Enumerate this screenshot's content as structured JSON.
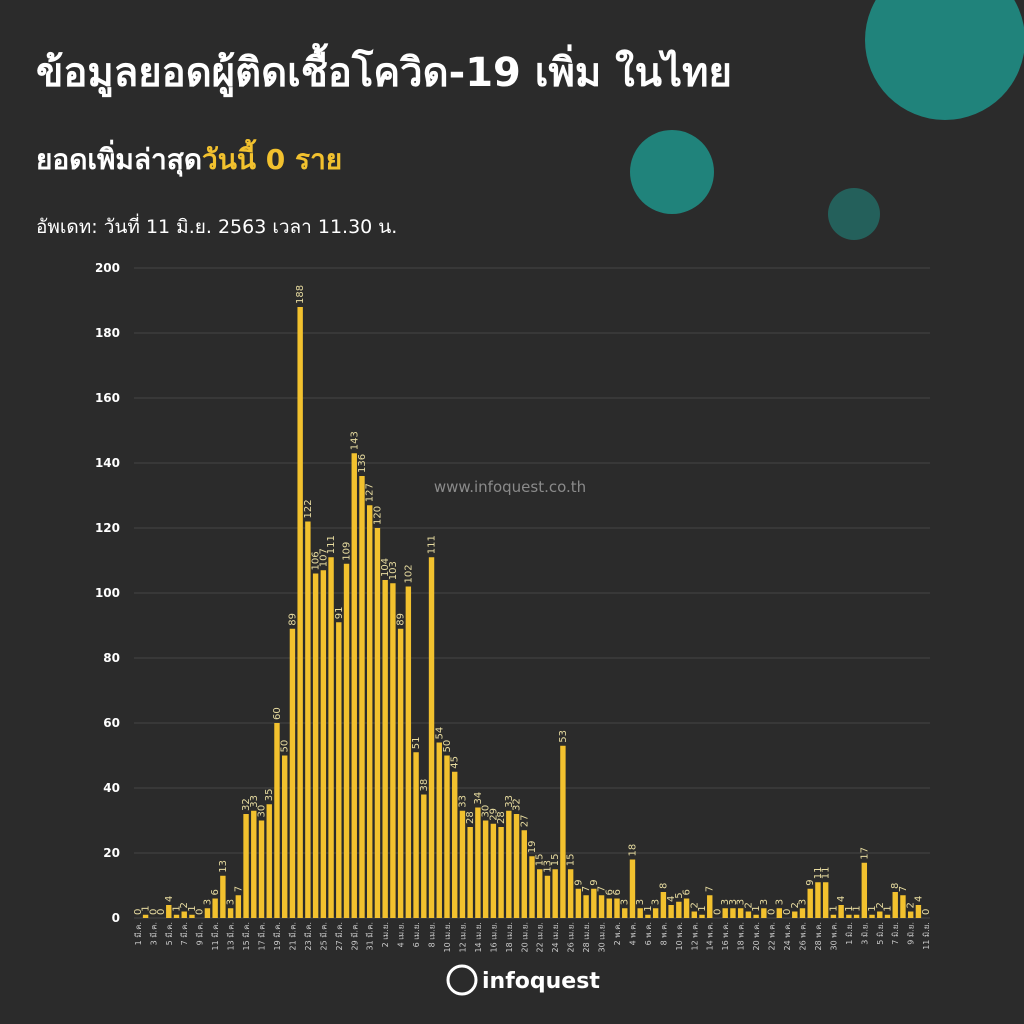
{
  "chart_data": {
    "type": "bar",
    "title": "ข้อมูลยอดผู้ติดเชื้อโควิด-19 เพิ่ม ในไทย",
    "subtitle": "ยอดเพิ่มล่าสุด",
    "subtitle_highlight": "วันนี้ 0 ราย",
    "update": "อัพเดท: วันที่ 11 มิ.ย. 2563 เวลา 11.30 น.",
    "watermark": "www.infoquest.co.th",
    "logo": "infoquest",
    "color": "#f2c12e",
    "grid": true,
    "ylim": [
      0,
      200
    ],
    "yticks": [
      0,
      20,
      40,
      60,
      80,
      100,
      120,
      140,
      160,
      180,
      200
    ],
    "categories": [
      "1 มี.ค.",
      null,
      "3 มี.ค.",
      null,
      "5 มี.ค.",
      null,
      "7 มี.ค.",
      null,
      "9 มี.ค.",
      null,
      "11 มี.ค.",
      null,
      "13 มี.ค.",
      null,
      "15 มี.ค.",
      null,
      "17 มี.ค.",
      null,
      "19 มี.ค.",
      null,
      "21 มี.ค.",
      null,
      "23 มี.ค.",
      null,
      "25 มี.ค.",
      null,
      "27 มี.ค.",
      null,
      "29 มี.ค.",
      null,
      "31 มี.ค.",
      null,
      "2 เม.ย.",
      null,
      "4 เม.ย.",
      null,
      "6 เม.ย.",
      null,
      "8 เม.ย.",
      null,
      "10 เม.ย.",
      null,
      "12 เม.ย.",
      null,
      "14 เม.ย.",
      null,
      "16 เม.ย.",
      null,
      "18 เม.ย.",
      null,
      "20 เม.ย.",
      null,
      "22 เม.ย.",
      null,
      "24 เม.ย.",
      null,
      "26 เม.ย.",
      null,
      "28 เม.ย.",
      null,
      "30 เม.ย.",
      null,
      "2 พ.ค.",
      null,
      "4 พ.ค.",
      null,
      "6 พ.ค.",
      null,
      "8 พ.ค.",
      null,
      "10 พ.ค.",
      null,
      "12 พ.ค.",
      null,
      "14 พ.ค.",
      null,
      "16 พ.ค.",
      null,
      "18 พ.ค.",
      null,
      "20 พ.ค.",
      null,
      "22 พ.ค.",
      null,
      "24 พ.ค.",
      null,
      "26 พ.ค.",
      null,
      "28 พ.ค.",
      null,
      "30 พ.ค.",
      null,
      "1 มิ.ย.",
      null,
      "3 มิ.ย.",
      null,
      "5 มิ.ย.",
      null,
      "7 มิ.ย.",
      null,
      "9 มิ.ย.",
      null,
      "11 มิ.ย."
    ],
    "values": [
      0,
      1,
      0,
      0,
      4,
      1,
      2,
      1,
      0,
      3,
      6,
      13,
      3,
      7,
      32,
      33,
      30,
      35,
      60,
      50,
      89,
      188,
      122,
      106,
      107,
      111,
      91,
      109,
      143,
      136,
      127,
      120,
      104,
      103,
      89,
      102,
      51,
      38,
      111,
      54,
      50,
      45,
      33,
      28,
      34,
      30,
      29,
      28,
      33,
      32,
      27,
      19,
      15,
      13,
      15,
      53,
      15,
      9,
      7,
      9,
      7,
      6,
      6,
      3,
      18,
      3,
      1,
      3,
      8,
      4,
      5,
      6,
      2,
      1,
      7,
      0,
      3,
      3,
      3,
      2,
      1,
      3,
      0,
      3,
      0,
      2,
      3,
      9,
      11,
      11,
      1,
      4,
      1,
      1,
      17,
      1,
      2,
      1,
      8,
      7,
      2,
      4,
      0
    ]
  }
}
